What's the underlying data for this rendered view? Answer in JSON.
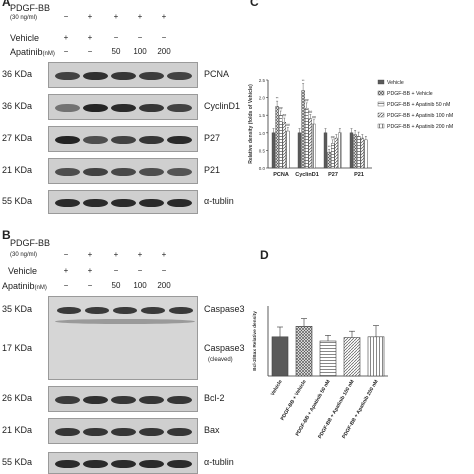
{
  "panelA": {
    "letter": "A",
    "treatment_label": "PDGF-BB",
    "treatment_sub": "(30 ng/ml)",
    "vehicle_label": "Vehicle",
    "apatinib_label": "Apatinib",
    "apatinib_unit": "(nM)",
    "pdgf_marks": [
      "−",
      "+",
      "+",
      "+",
      "+"
    ],
    "vehicle_marks": [
      "+",
      "+",
      "−",
      "−",
      "−"
    ],
    "apatinib_marks": [
      "−",
      "−",
      "50",
      "100",
      "200"
    ],
    "blots": [
      {
        "kda": "36 KDa",
        "protein": "PCNA"
      },
      {
        "kda": "36 KDa",
        "protein": "CyclinD1"
      },
      {
        "kda": "27 KDa",
        "protein": "P27"
      },
      {
        "kda": "21 KDa",
        "protein": "P21"
      },
      {
        "kda": "55 KDa",
        "protein": "α-tublin"
      }
    ]
  },
  "panelB": {
    "letter": "B",
    "treatment_label": "PDGF-BB",
    "treatment_sub": "(30 ng/ml)",
    "vehicle_label": "Vehicle",
    "apatinib_label": "Apatinib",
    "apatinib_unit": "(nM)",
    "pdgf_marks": [
      "−",
      "+",
      "+",
      "+",
      "+"
    ],
    "vehicle_marks": [
      "+",
      "+",
      "−",
      "−",
      "−"
    ],
    "apatinib_marks": [
      "−",
      "−",
      "50",
      "100",
      "200"
    ],
    "caspase_kda_top": "35 KDa",
    "caspase_kda_bottom": "17 KDa",
    "caspase_label": "Caspase3",
    "caspase_cleaved_label": "Caspase3",
    "caspase_cleaved_sub": "(cleaved)",
    "blots": [
      {
        "kda": "26 KDa",
        "protein": "Bcl-2"
      },
      {
        "kda": "21 KDa",
        "protein": "Bax"
      },
      {
        "kda": "55 KDa",
        "protein": "α-tublin"
      }
    ]
  },
  "panelC": {
    "letter": "C",
    "chart_data": {
      "type": "bar",
      "categories": [
        "PCNA",
        "CyclinD1",
        "P27",
        "P21"
      ],
      "ylabel": "Relative density (folds of Vehicle)",
      "ylim": [
        0,
        2.5
      ],
      "yticks": [
        0.0,
        0.5,
        1.0,
        1.5,
        2.0,
        2.5
      ],
      "legend_position": "right",
      "series": [
        {
          "name": "Vehicle",
          "values": [
            1.0,
            1.0,
            1.0,
            1.0
          ],
          "errors": [
            0.12,
            0.12,
            0.12,
            0.12
          ]
        },
        {
          "name": "PDGF-BB + Vehicle",
          "values": [
            1.75,
            2.2,
            0.45,
            0.95
          ],
          "errors": [
            0.15,
            0.2,
            0.08,
            0.12
          ]
        },
        {
          "name": "PDGF-BB + Apatinib 50 nM",
          "values": [
            1.5,
            1.7,
            0.7,
            0.9
          ],
          "errors": [
            0.12,
            0.15,
            0.1,
            0.12
          ]
        },
        {
          "name": "PDGF-BB + Apatinib 100 nM",
          "values": [
            1.3,
            1.4,
            0.85,
            0.85
          ],
          "errors": [
            0.12,
            0.12,
            0.1,
            0.1
          ]
        },
        {
          "name": "PDGF-BB + Apatinib 200 nM",
          "values": [
            1.05,
            1.25,
            1.0,
            0.8
          ],
          "errors": [
            0.1,
            0.12,
            0.12,
            0.1
          ]
        }
      ],
      "annotations": [
        "**",
        "##",
        "##",
        "##",
        "**",
        "##",
        "##",
        "##",
        "**",
        "##",
        "##"
      ]
    }
  },
  "panelD": {
    "letter": "D",
    "chart_data": {
      "type": "bar",
      "categories": [
        "Vehicle",
        "PDGF-BB + Vehicle",
        "PDGF-BB + Apatinib 50 nM",
        "PDGF-BB + Apatinib 100 nM",
        "PDGF-BB + Apatinib 200 nM"
      ],
      "values": [
        1.12,
        1.42,
        1.0,
        1.1,
        1.12
      ],
      "errors": [
        0.28,
        0.22,
        0.16,
        0.18,
        0.32
      ],
      "ylabel": "Bcl-2/Bax Relative density",
      "ylim": [
        0,
        2.0
      ]
    }
  },
  "colors": {
    "bar_dark": "#5a5a5a",
    "bar_mid": "#8c8c8c",
    "bar_light": "#d8d8d8",
    "axis": "#333333"
  }
}
